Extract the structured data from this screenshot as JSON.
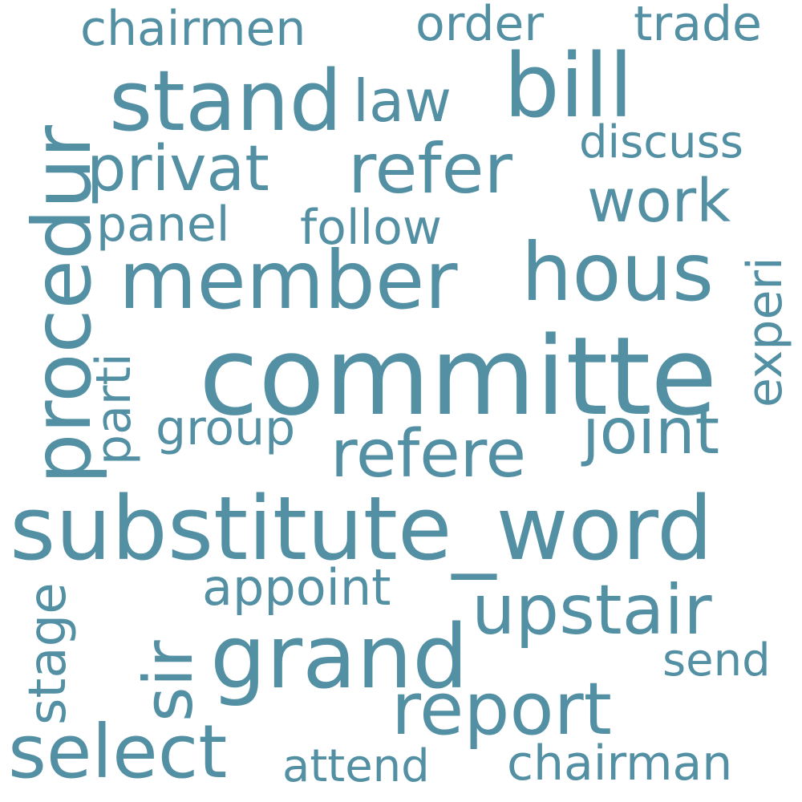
{
  "color": "#5390a4",
  "background": "#ffffff",
  "words": {
    "committe": "committe",
    "substitute_word": "substitute_word",
    "grand": "grand",
    "bill": "bill",
    "stand": "stand",
    "member": "member",
    "hous": "hous",
    "procedur": "procedur",
    "select": "select",
    "report": "report",
    "upstair": "upstair",
    "refer": "refer",
    "privat": "privat",
    "refere": "refere",
    "joint": "joint",
    "work": "work",
    "law": "law",
    "sir": "sir",
    "chairmen": "chairmen",
    "order": "order",
    "trade": "trade",
    "discuss": "discuss",
    "panel": "panel",
    "follow": "follow",
    "group": "group",
    "appoint": "appoint",
    "send": "send",
    "chairman": "chairman",
    "attend": "attend",
    "stage": "stage",
    "parti": "parti",
    "experi": "experi"
  }
}
